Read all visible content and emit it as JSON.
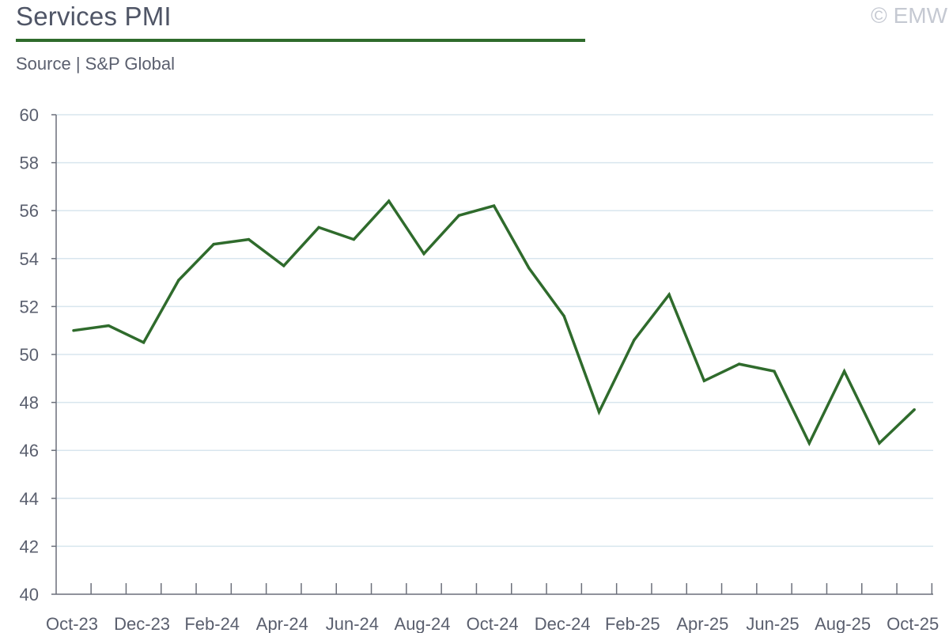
{
  "header": {
    "title": "Services PMI",
    "subtitle": "Source | S&P Global",
    "copyright": "© EMW"
  },
  "colors": {
    "line": "#2f6b2c",
    "grid": "#d8e6ee",
    "axis": "#6b6f7a",
    "title_rule": "#2f6b2c"
  },
  "chart_data": {
    "type": "line",
    "title": "Services PMI",
    "subtitle": "Source | S&P Global",
    "xlabel": "",
    "ylabel": "",
    "ylim": [
      40,
      60
    ],
    "yticks": [
      40,
      42,
      44,
      46,
      48,
      50,
      52,
      54,
      56,
      58,
      60
    ],
    "grid": true,
    "legend": "none",
    "categories": [
      "Oct-23",
      "Nov-23",
      "Dec-23",
      "Jan-24",
      "Feb-24",
      "Mar-24",
      "Apr-24",
      "May-24",
      "Jun-24",
      "Jul-24",
      "Aug-24",
      "Sep-24",
      "Oct-24",
      "Nov-24",
      "Dec-24",
      "Jan-25",
      "Feb-25",
      "Mar-25",
      "Apr-25",
      "May-25",
      "Jun-25",
      "Jul-25",
      "Aug-25",
      "Sep-25",
      "Oct-25"
    ],
    "x_tick_labels": [
      "Oct-23",
      "Dec-23",
      "Feb-24",
      "Apr-24",
      "Jun-24",
      "Aug-24",
      "Oct-24",
      "Dec-24",
      "Feb-25",
      "Apr-25",
      "Jun-25",
      "Aug-25",
      "Oct-25"
    ],
    "series": [
      {
        "values": [
          51.0,
          51.2,
          50.5,
          53.1,
          54.6,
          54.8,
          53.7,
          55.3,
          54.8,
          56.4,
          54.2,
          55.8,
          56.2,
          53.6,
          51.6,
          47.6,
          50.6,
          52.5,
          48.9,
          49.6,
          49.3,
          46.3,
          49.3,
          46.3,
          47.7
        ]
      }
    ]
  }
}
